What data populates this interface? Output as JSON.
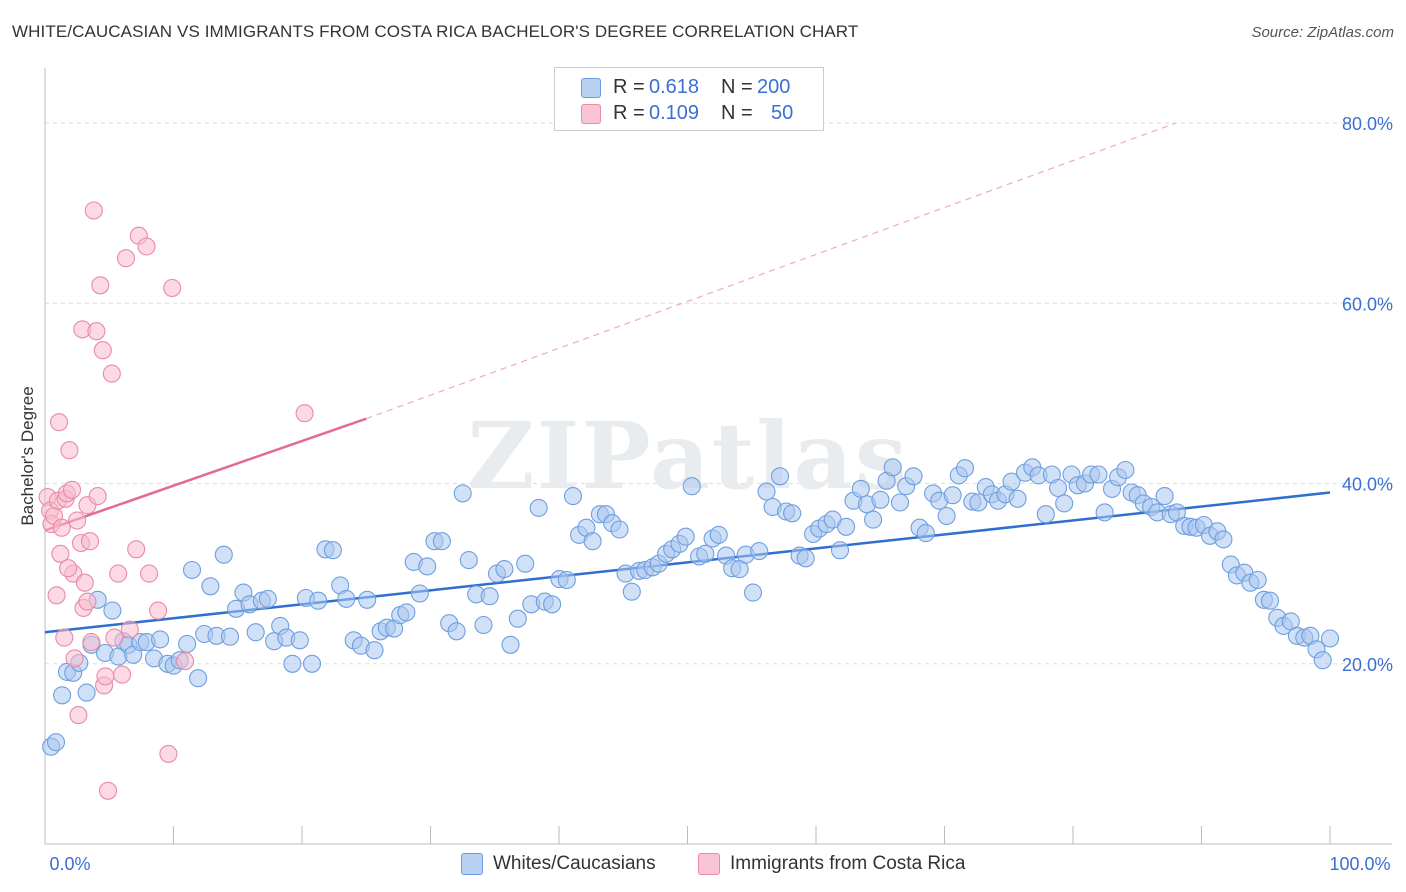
{
  "title": "WHITE/CAUCASIAN VS IMMIGRANTS FROM COSTA RICA BACHELOR'S DEGREE CORRELATION CHART",
  "source": "Source: ZipAtlas.com",
  "watermark": "ZIPatlas",
  "legend_stats": {
    "r_label": "R =",
    "n_label": "N =",
    "rows": [
      {
        "r": "0.618",
        "n": "200",
        "color": "#b8d1f3",
        "border": "#6a9be0"
      },
      {
        "r": "0.109",
        "n": "50",
        "color": "#f8c3d3",
        "border": "#e98aa8"
      }
    ]
  },
  "chart_data": {
    "type": "scatter",
    "title": "WHITE/CAUCASIAN VS IMMIGRANTS FROM COSTA RICA BACHELOR'S DEGREE CORRELATION CHART",
    "xlabel": "",
    "ylabel": "Bachelor's Degree",
    "xlim": [
      0,
      100
    ],
    "ylim": [
      0,
      85
    ],
    "x_tick_labels": [
      "0.0%",
      "100.0%"
    ],
    "y_ticks": [
      20,
      40,
      60,
      80
    ],
    "y_tick_labels": [
      "20.0%",
      "40.0%",
      "60.0%",
      "80.0%"
    ],
    "grid": true,
    "series": [
      {
        "name": "Whites/Caucasians",
        "color": "#a9c6ee",
        "edge": "#6f9fe0",
        "trend": {
          "x": [
            0,
            100
          ],
          "y": [
            23.5,
            39.0
          ],
          "color": "#2e6fd0"
        },
        "points": [
          [
            0.5,
            10.8
          ],
          [
            0.9,
            11.3
          ],
          [
            1.4,
            16.5
          ],
          [
            1.8,
            19.1
          ],
          [
            2.3,
            19.0
          ],
          [
            2.8,
            20.1
          ],
          [
            3.4,
            16.8
          ],
          [
            3.8,
            22.1
          ],
          [
            4.3,
            27.1
          ],
          [
            4.9,
            21.2
          ],
          [
            5.5,
            25.9
          ],
          [
            6.0,
            20.8
          ],
          [
            6.4,
            22.5
          ],
          [
            6.8,
            22.1
          ],
          [
            7.2,
            21.0
          ],
          [
            7.8,
            22.4
          ],
          [
            8.3,
            22.4
          ],
          [
            8.9,
            20.6
          ],
          [
            9.4,
            22.7
          ],
          [
            10.0,
            20.0
          ],
          [
            10.5,
            19.8
          ],
          [
            11.0,
            20.4
          ],
          [
            11.6,
            22.2
          ],
          [
            12.0,
            30.4
          ],
          [
            12.5,
            18.4
          ],
          [
            13.0,
            23.3
          ],
          [
            13.5,
            28.6
          ],
          [
            14.0,
            23.1
          ],
          [
            14.6,
            32.1
          ],
          [
            15.1,
            23.0
          ],
          [
            15.6,
            26.1
          ],
          [
            16.2,
            27.9
          ],
          [
            16.7,
            26.6
          ],
          [
            17.2,
            23.5
          ],
          [
            17.7,
            27.0
          ],
          [
            18.2,
            27.2
          ],
          [
            18.7,
            22.5
          ],
          [
            19.2,
            24.2
          ],
          [
            19.7,
            22.9
          ],
          [
            20.2,
            20.0
          ],
          [
            20.8,
            22.6
          ],
          [
            21.3,
            27.3
          ],
          [
            21.8,
            20.0
          ],
          [
            22.3,
            27.0
          ],
          [
            22.9,
            32.7
          ],
          [
            23.5,
            32.6
          ],
          [
            24.1,
            28.7
          ],
          [
            24.6,
            27.2
          ],
          [
            25.2,
            22.6
          ],
          [
            25.8,
            22.0
          ],
          [
            26.3,
            27.1
          ],
          [
            26.9,
            21.5
          ],
          [
            27.4,
            23.6
          ],
          [
            27.9,
            24.0
          ],
          [
            28.5,
            23.9
          ],
          [
            29.0,
            25.4
          ],
          [
            29.5,
            25.7
          ],
          [
            30.1,
            31.3
          ],
          [
            30.6,
            27.8
          ],
          [
            31.2,
            30.8
          ],
          [
            31.8,
            33.6
          ],
          [
            32.4,
            33.6
          ],
          [
            33.0,
            24.5
          ],
          [
            33.6,
            23.6
          ],
          [
            34.1,
            38.9
          ],
          [
            34.6,
            31.5
          ],
          [
            35.2,
            27.7
          ],
          [
            35.8,
            24.3
          ],
          [
            36.3,
            27.5
          ],
          [
            36.9,
            30.0
          ],
          [
            37.5,
            30.5
          ],
          [
            38.0,
            22.1
          ],
          [
            38.6,
            25.0
          ],
          [
            39.2,
            31.1
          ],
          [
            39.7,
            26.6
          ],
          [
            40.3,
            37.3
          ],
          [
            40.8,
            26.9
          ],
          [
            41.4,
            26.6
          ],
          [
            42.0,
            29.4
          ],
          [
            42.6,
            29.3
          ],
          [
            43.1,
            38.6
          ],
          [
            43.6,
            34.3
          ],
          [
            44.2,
            35.1
          ],
          [
            44.7,
            33.6
          ],
          [
            45.3,
            36.6
          ],
          [
            45.8,
            36.6
          ],
          [
            46.3,
            35.6
          ],
          [
            46.9,
            34.9
          ],
          [
            47.4,
            30.0
          ],
          [
            47.9,
            28.0
          ],
          [
            48.5,
            30.3
          ],
          [
            49.0,
            30.4
          ],
          [
            49.6,
            30.7
          ],
          [
            50.1,
            31.1
          ],
          [
            50.7,
            32.2
          ],
          [
            51.2,
            32.7
          ],
          [
            51.8,
            33.3
          ],
          [
            52.3,
            34.1
          ],
          [
            52.8,
            39.7
          ],
          [
            53.4,
            31.9
          ],
          [
            53.9,
            32.2
          ],
          [
            54.5,
            33.9
          ],
          [
            55.0,
            34.3
          ],
          [
            55.6,
            32.0
          ],
          [
            56.1,
            30.6
          ],
          [
            56.7,
            30.5
          ],
          [
            57.2,
            32.1
          ],
          [
            57.8,
            27.9
          ],
          [
            58.3,
            32.5
          ],
          [
            58.9,
            39.1
          ],
          [
            59.4,
            37.4
          ],
          [
            60.0,
            40.8
          ],
          [
            60.5,
            36.9
          ],
          [
            61.0,
            36.7
          ],
          [
            61.6,
            32.0
          ],
          [
            62.1,
            31.7
          ],
          [
            62.7,
            34.4
          ],
          [
            63.2,
            35.0
          ],
          [
            63.8,
            35.5
          ],
          [
            64.3,
            36.0
          ],
          [
            64.9,
            32.6
          ],
          [
            65.4,
            35.2
          ],
          [
            66.0,
            38.1
          ],
          [
            66.6,
            39.4
          ],
          [
            67.1,
            37.7
          ],
          [
            67.6,
            36.0
          ],
          [
            68.2,
            38.2
          ],
          [
            68.7,
            40.3
          ],
          [
            69.2,
            41.8
          ],
          [
            69.8,
            37.9
          ],
          [
            70.3,
            39.7
          ],
          [
            70.9,
            40.8
          ],
          [
            71.4,
            35.1
          ],
          [
            71.9,
            34.5
          ],
          [
            72.5,
            38.9
          ],
          [
            73.0,
            38.1
          ],
          [
            73.6,
            36.4
          ],
          [
            74.1,
            38.7
          ],
          [
            74.6,
            40.9
          ],
          [
            75.1,
            41.7
          ],
          [
            75.7,
            38.0
          ],
          [
            76.2,
            37.9
          ],
          [
            76.8,
            39.6
          ],
          [
            77.3,
            38.8
          ],
          [
            77.8,
            38.1
          ],
          [
            78.4,
            38.8
          ],
          [
            78.9,
            40.2
          ],
          [
            79.4,
            38.3
          ],
          [
            80.0,
            41.2
          ],
          [
            80.6,
            41.8
          ],
          [
            81.1,
            40.9
          ],
          [
            81.7,
            36.6
          ],
          [
            82.2,
            41.0
          ],
          [
            82.7,
            39.5
          ],
          [
            83.2,
            37.8
          ],
          [
            83.8,
            41.0
          ],
          [
            84.3,
            39.8
          ],
          [
            84.9,
            40.0
          ],
          [
            85.4,
            41.0
          ],
          [
            86.0,
            41.0
          ],
          [
            86.5,
            36.8
          ],
          [
            87.1,
            39.4
          ],
          [
            87.6,
            40.7
          ],
          [
            88.2,
            41.5
          ],
          [
            88.7,
            39.0
          ],
          [
            89.2,
            38.7
          ],
          [
            89.7,
            37.8
          ],
          [
            90.3,
            37.4
          ],
          [
            90.8,
            36.8
          ],
          [
            91.4,
            38.6
          ],
          [
            91.9,
            36.6
          ],
          [
            92.4,
            36.8
          ],
          [
            93.0,
            35.3
          ],
          [
            93.5,
            35.2
          ],
          [
            94.0,
            35.1
          ],
          [
            94.6,
            35.4
          ],
          [
            95.1,
            34.2
          ],
          [
            95.7,
            34.7
          ],
          [
            96.2,
            33.8
          ],
          [
            96.8,
            31.0
          ],
          [
            97.3,
            29.8
          ],
          [
            97.9,
            30.1
          ],
          [
            98.4,
            29.0
          ],
          [
            99.0,
            29.3
          ],
          [
            99.5,
            27.1
          ],
          [
            100.0,
            27.0
          ],
          [
            100.6,
            25.1
          ],
          [
            101.1,
            24.2
          ],
          [
            101.7,
            24.7
          ],
          [
            102.2,
            23.1
          ],
          [
            102.8,
            22.9
          ],
          [
            103.3,
            23.1
          ],
          [
            103.8,
            21.6
          ],
          [
            104.3,
            20.4
          ],
          [
            104.9,
            22.8
          ]
        ]
      },
      {
        "name": "Immigrants from Costa Rica",
        "color": "#f7bccd",
        "edge": "#e98aa8",
        "trend": {
          "x": [
            0,
            25
          ],
          "y": [
            34.8,
            47.2
          ],
          "dashed_to": [
            88,
            80
          ],
          "color": "#e56a92"
        },
        "points": [
          [
            0.2,
            38.5
          ],
          [
            0.4,
            37.0
          ],
          [
            0.5,
            35.5
          ],
          [
            0.7,
            36.4
          ],
          [
            0.9,
            27.6
          ],
          [
            1.0,
            38.1
          ],
          [
            1.1,
            46.8
          ],
          [
            1.2,
            32.2
          ],
          [
            1.3,
            35.1
          ],
          [
            1.5,
            22.9
          ],
          [
            1.6,
            38.3
          ],
          [
            1.7,
            38.9
          ],
          [
            1.9,
            43.7
          ],
          [
            2.1,
            39.3
          ],
          [
            2.2,
            30.0
          ],
          [
            2.3,
            20.6
          ],
          [
            2.5,
            35.9
          ],
          [
            2.6,
            14.3
          ],
          [
            2.8,
            33.4
          ],
          [
            2.9,
            57.1
          ],
          [
            3.0,
            26.2
          ],
          [
            3.1,
            29.0
          ],
          [
            3.3,
            37.6
          ],
          [
            3.5,
            33.6
          ],
          [
            3.6,
            22.4
          ],
          [
            3.8,
            70.3
          ],
          [
            4.0,
            56.9
          ],
          [
            4.1,
            38.6
          ],
          [
            4.3,
            62.0
          ],
          [
            4.5,
            54.8
          ],
          [
            4.6,
            17.6
          ],
          [
            4.7,
            18.6
          ],
          [
            4.9,
            5.9
          ],
          [
            5.2,
            52.2
          ],
          [
            5.4,
            22.9
          ],
          [
            5.7,
            30.0
          ],
          [
            6.0,
            18.8
          ],
          [
            6.3,
            65.0
          ],
          [
            6.6,
            23.8
          ],
          [
            7.1,
            32.7
          ],
          [
            7.3,
            67.5
          ],
          [
            7.9,
            66.3
          ],
          [
            8.1,
            30.0
          ],
          [
            8.8,
            25.9
          ],
          [
            9.6,
            10.0
          ],
          [
            9.9,
            61.7
          ],
          [
            10.9,
            20.3
          ],
          [
            20.2,
            47.8
          ],
          [
            3.3,
            26.9
          ],
          [
            1.8,
            30.6
          ]
        ]
      }
    ]
  },
  "bottom_legend": [
    {
      "label": "Whites/Caucasians",
      "color": "#b8d1f3",
      "border": "#6a9be0"
    },
    {
      "label": "Immigrants from Costa Rica",
      "color": "#f8c3d3",
      "border": "#e98aa8"
    }
  ]
}
